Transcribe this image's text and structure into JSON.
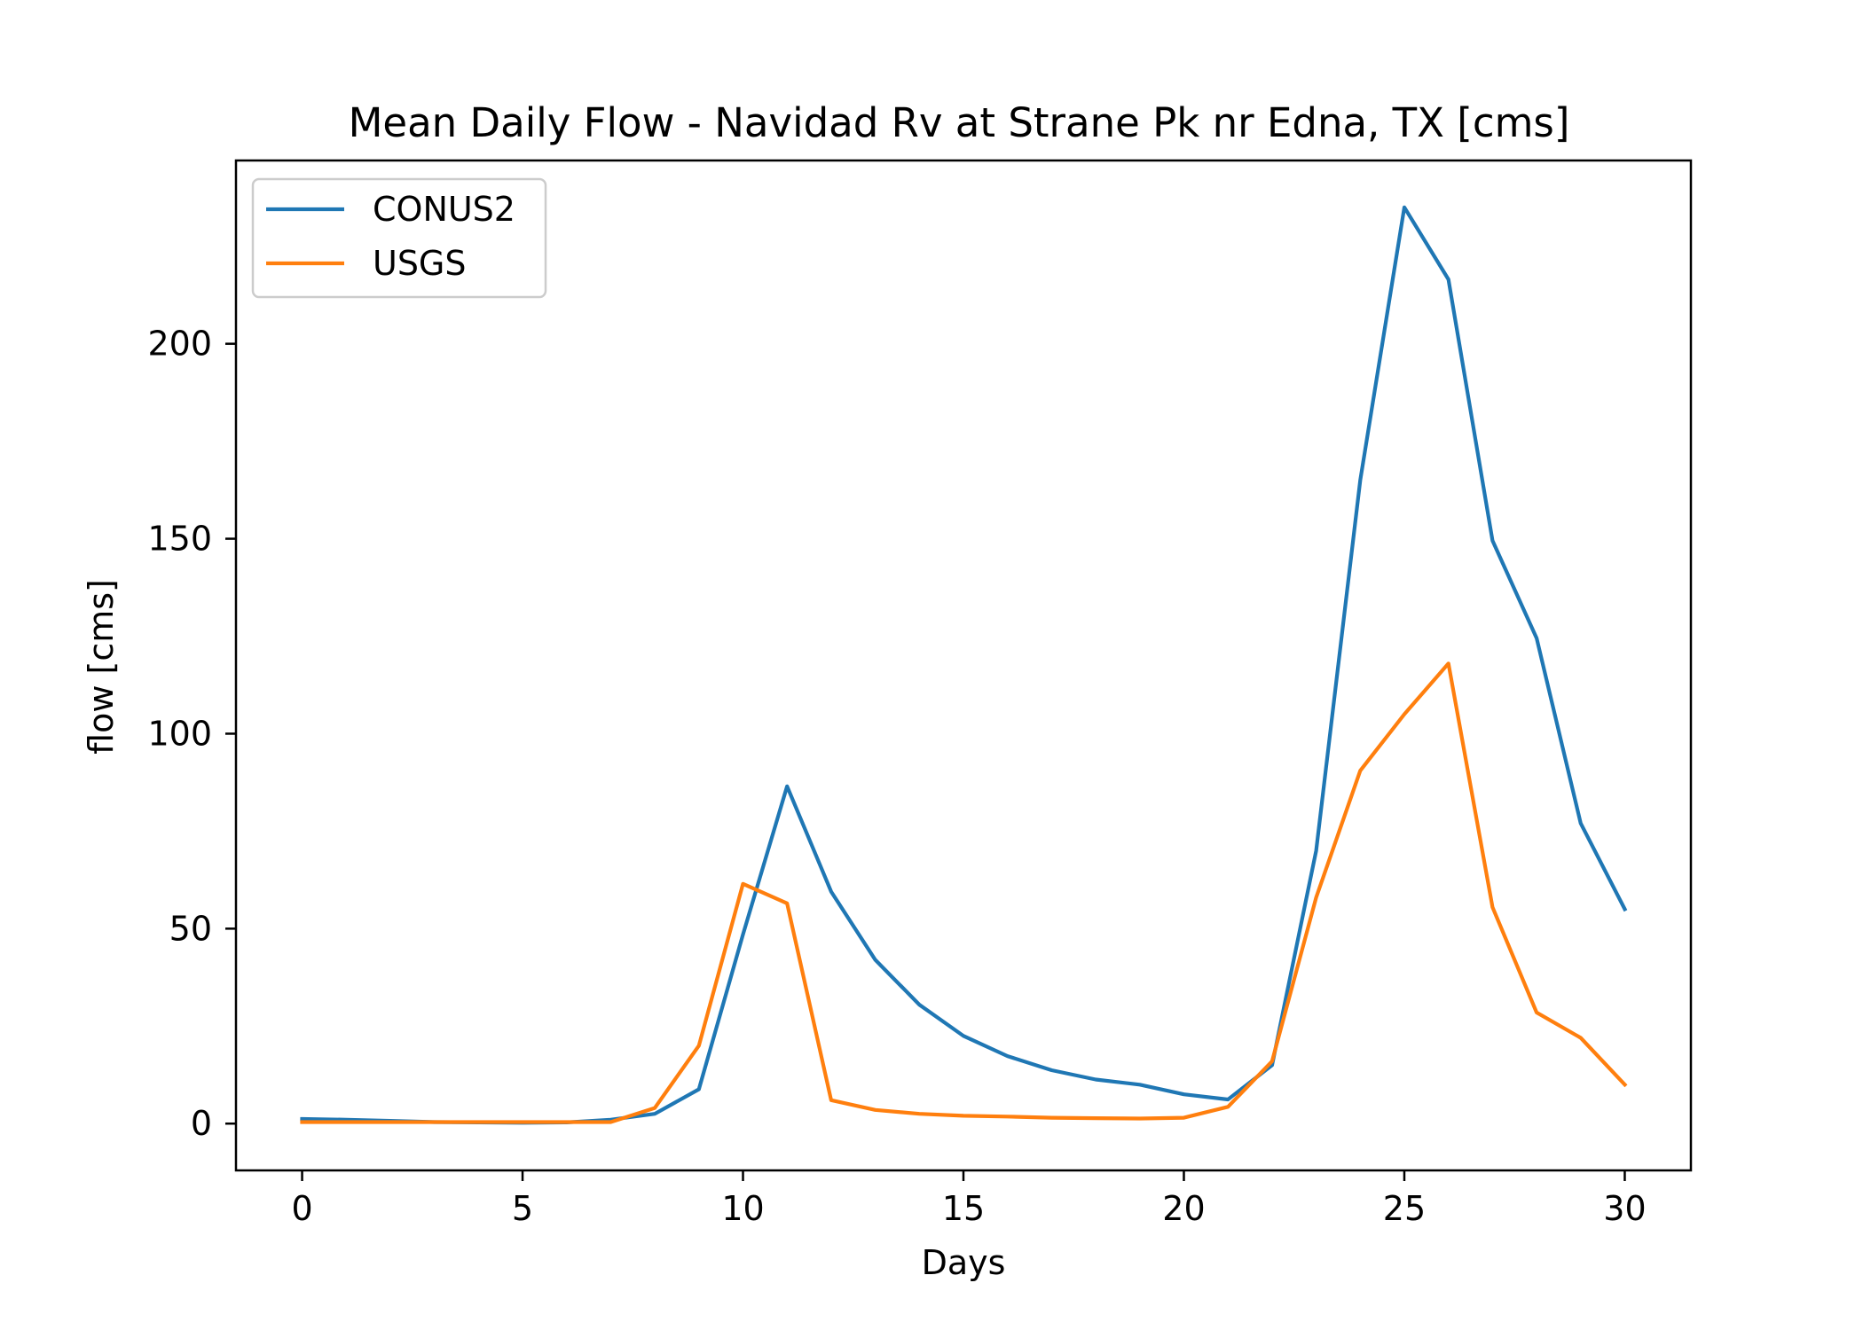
{
  "chart_data": {
    "type": "line",
    "title": "Mean Daily Flow - Navidad Rv at Strane Pk nr Edna, TX [cms]",
    "xlabel": "Days",
    "ylabel": "flow [cms]",
    "xlim": [
      -1.5,
      31.5
    ],
    "ylim": [
      -12,
      247
    ],
    "xticks": [
      0,
      5,
      10,
      15,
      20,
      25,
      30
    ],
    "yticks": [
      0,
      50,
      100,
      150,
      200
    ],
    "grid": false,
    "legend_position": "upper left",
    "x": [
      0,
      1,
      2,
      3,
      4,
      5,
      6,
      7,
      8,
      9,
      10,
      11,
      12,
      13,
      14,
      15,
      16,
      17,
      18,
      19,
      20,
      21,
      22,
      23,
      24,
      25,
      26,
      27,
      28,
      29,
      30
    ],
    "series": [
      {
        "name": "CONUS2",
        "color": "#1f77b4",
        "values": [
          1.2,
          1.0,
          0.7,
          0.4,
          0.3,
          0.2,
          0.3,
          1.0,
          2.5,
          8.8,
          48.5,
          86.5,
          59.5,
          42.0,
          30.5,
          22.5,
          17.3,
          13.7,
          11.3,
          10.0,
          7.5,
          6.2,
          15.0,
          70.0,
          165.0,
          235.0,
          216.5,
          149.5,
          124.5,
          77.0,
          55.0
        ]
      },
      {
        "name": "USGS",
        "color": "#ff7f0e",
        "values": [
          0.4,
          0.4,
          0.4,
          0.4,
          0.4,
          0.4,
          0.4,
          0.4,
          4.0,
          20.0,
          61.5,
          56.5,
          6.0,
          3.5,
          2.5,
          2.0,
          1.8,
          1.5,
          1.4,
          1.3,
          1.5,
          4.3,
          16.0,
          58.0,
          90.5,
          105.0,
          118.0,
          55.5,
          28.5,
          22.0,
          10.0
        ]
      }
    ]
  }
}
